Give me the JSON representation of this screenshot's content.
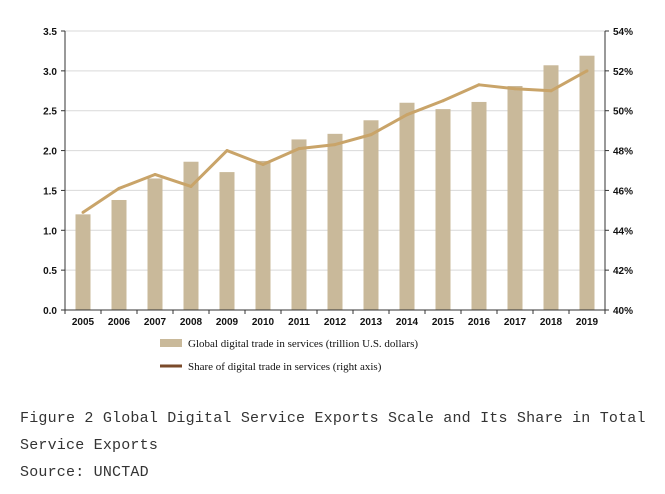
{
  "chart_data": {
    "type": "bar",
    "categories": [
      "2005",
      "2006",
      "2007",
      "2008",
      "2009",
      "2010",
      "2011",
      "2012",
      "2013",
      "2014",
      "2015",
      "2016",
      "2017",
      "2018",
      "2019"
    ],
    "series": [
      {
        "name": "Global digital trade in services (trillion U.S. dollars)",
        "type": "bar",
        "axis": "left",
        "color": "#c9b99a",
        "values": [
          1.2,
          1.38,
          1.65,
          1.86,
          1.73,
          1.87,
          2.14,
          2.21,
          2.38,
          2.6,
          2.52,
          2.61,
          2.81,
          3.07,
          3.19
        ]
      },
      {
        "name": "Share of digital trade in services (right axis)",
        "type": "line",
        "axis": "right",
        "color": "#c9a469",
        "values": [
          44.9,
          46.1,
          46.8,
          46.2,
          48.0,
          47.3,
          48.1,
          48.3,
          48.8,
          49.8,
          50.5,
          51.3,
          51.1,
          51.0,
          52.0
        ]
      }
    ],
    "ylim_left": [
      0,
      3.5
    ],
    "yticks_left": [
      "0.0",
      "0.5",
      "1.0",
      "1.5",
      "2.0",
      "2.5",
      "3.0",
      "3.5"
    ],
    "ylim_right": [
      40,
      54
    ],
    "yticks_right": [
      "40%",
      "42%",
      "44%",
      "46%",
      "48%",
      "50%",
      "52%",
      "54%"
    ],
    "grid": true,
    "legend_position": "bottom-left"
  },
  "caption": {
    "line1": "Figure 2 Global Digital Service Exports Scale and Its Share in Total",
    "line2": "Service Exports",
    "source": "Source: UNCTAD"
  }
}
